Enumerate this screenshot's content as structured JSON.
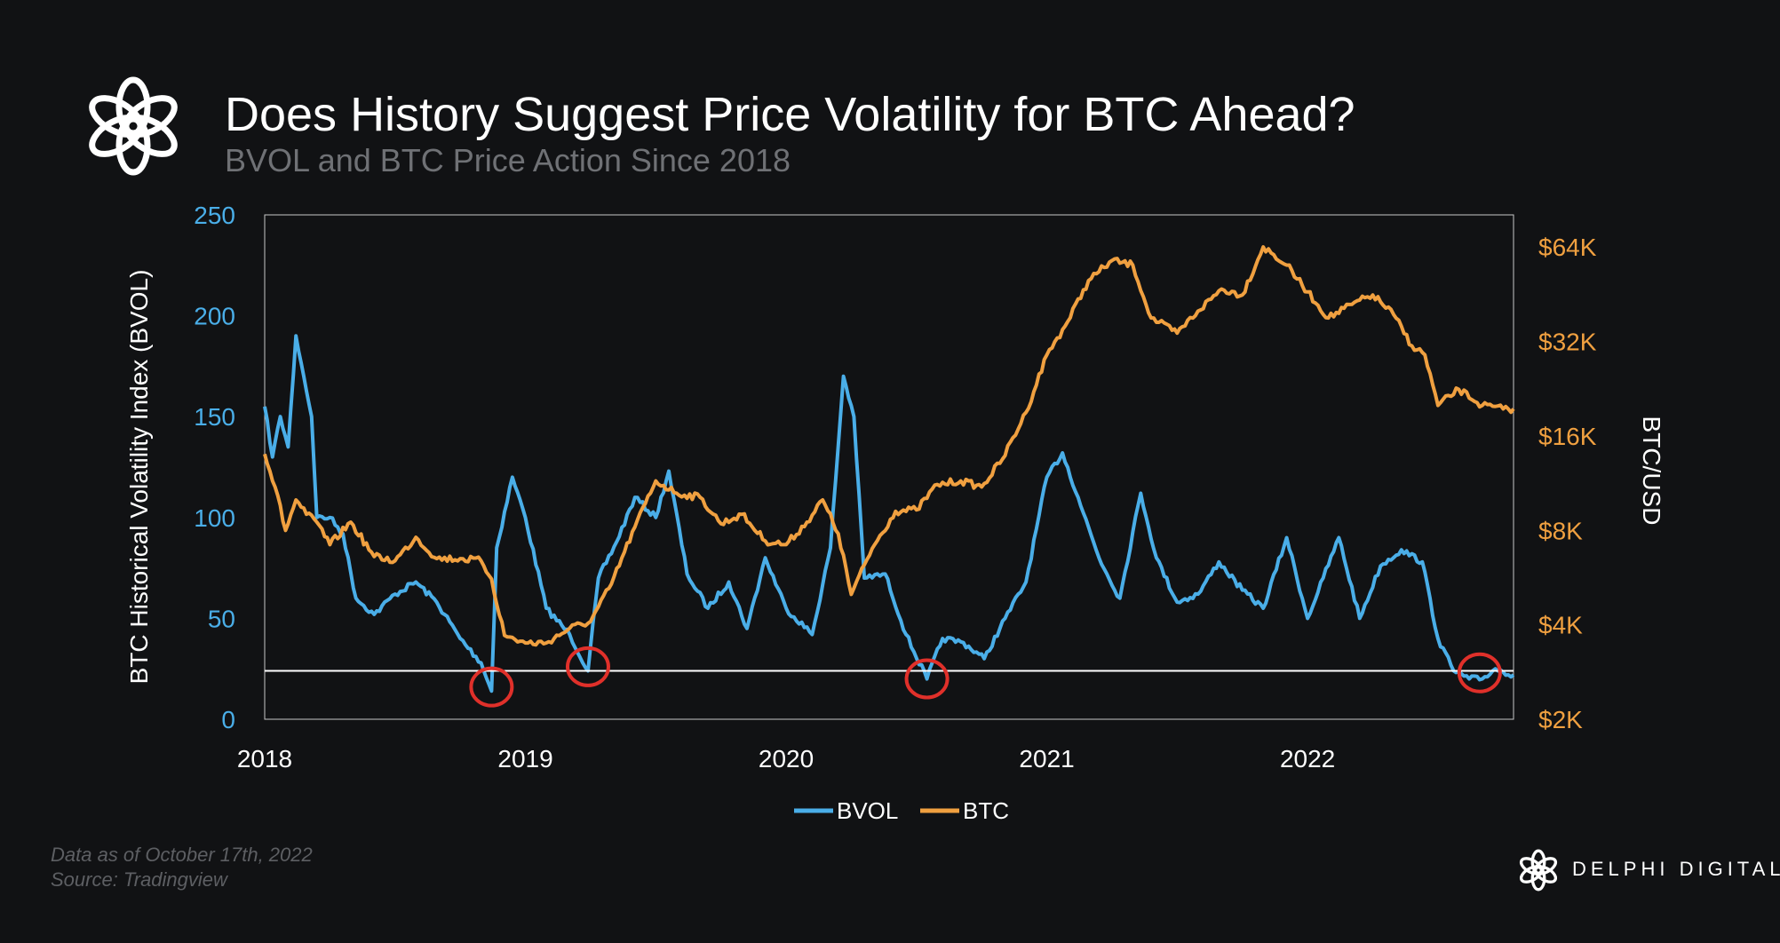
{
  "header": {
    "title": "Does History Suggest Price Volatility for BTC Ahead?",
    "subtitle": "BVOL and BTC Price Action Since 2018",
    "logo_icon": "delphi-knot-logo"
  },
  "footer": {
    "note": "Data as of October 17th, 2022",
    "source": "Source: Tradingview",
    "brand": "DELPHI DIGITAL"
  },
  "colors": {
    "background": "#111214",
    "bvol": "#4aaee8",
    "btc": "#f0a040",
    "threshold": "#ffffff",
    "annotation": "#e0302a"
  },
  "chart_data": {
    "type": "line",
    "title": "Does History Suggest Price Volatility for BTC Ahead?",
    "subtitle": "BVOL and BTC Price Action Since 2018",
    "xlabel": "",
    "ylabel": "BTC Historical Volatility Index (BVOL)",
    "y2label": "BTC/USD",
    "xlim": [
      2018.0,
      2022.79
    ],
    "ylim": [
      0,
      250
    ],
    "y2lim": [
      2000,
      81000
    ],
    "y2scale": "log",
    "grid": false,
    "legend": "bottom-center",
    "x_ticks": [
      "2018",
      "2019",
      "2020",
      "2021",
      "2022"
    ],
    "y_ticks": [
      "0",
      "50",
      "100",
      "150",
      "200",
      "250"
    ],
    "y2_ticks": [
      {
        "value": 2000,
        "label": "$2K"
      },
      {
        "value": 4000,
        "label": "$4K"
      },
      {
        "value": 8000,
        "label": "$8K"
      },
      {
        "value": 16000,
        "label": "$16K"
      },
      {
        "value": 32000,
        "label": "$32K"
      },
      {
        "value": 64000,
        "label": "$64K"
      }
    ],
    "series": [
      {
        "name": "BVOL",
        "axis": "left",
        "color": "#4aaee8",
        "x": [
          2018.0,
          2018.03,
          2018.06,
          2018.09,
          2018.12,
          2018.15,
          2018.18,
          2018.2,
          2018.25,
          2018.3,
          2018.35,
          2018.42,
          2018.5,
          2018.58,
          2018.66,
          2018.75,
          2018.83,
          2018.87,
          2018.89,
          2018.95,
          2019.0,
          2019.08,
          2019.17,
          2019.24,
          2019.28,
          2019.35,
          2019.42,
          2019.5,
          2019.55,
          2019.62,
          2019.7,
          2019.78,
          2019.85,
          2019.92,
          2020.0,
          2020.1,
          2020.17,
          2020.22,
          2020.26,
          2020.3,
          2020.38,
          2020.46,
          2020.54,
          2020.6,
          2020.68,
          2020.76,
          2020.84,
          2020.92,
          2021.0,
          2021.06,
          2021.12,
          2021.2,
          2021.28,
          2021.36,
          2021.42,
          2021.5,
          2021.58,
          2021.66,
          2021.75,
          2021.83,
          2021.92,
          2022.0,
          2022.06,
          2022.12,
          2022.2,
          2022.28,
          2022.36,
          2022.44,
          2022.5,
          2022.56,
          2022.62,
          2022.67,
          2022.72,
          2022.79
        ],
        "y": [
          155,
          130,
          150,
          135,
          190,
          170,
          150,
          100,
          100,
          92,
          60,
          52,
          62,
          68,
          58,
          40,
          28,
          14,
          85,
          120,
          100,
          55,
          42,
          24,
          70,
          88,
          110,
          100,
          123,
          72,
          55,
          68,
          45,
          80,
          55,
          42,
          85,
          170,
          150,
          70,
          72,
          42,
          20,
          40,
          38,
          30,
          50,
          68,
          120,
          132,
          110,
          80,
          60,
          112,
          80,
          58,
          62,
          78,
          64,
          55,
          90,
          50,
          70,
          90,
          50,
          76,
          84,
          78,
          40,
          24,
          20,
          20,
          25,
          22
        ]
      },
      {
        "name": "BTC",
        "axis": "right",
        "color": "#f0a040",
        "x": [
          2018.0,
          2018.04,
          2018.08,
          2018.12,
          2018.16,
          2018.2,
          2018.25,
          2018.33,
          2018.42,
          2018.5,
          2018.58,
          2018.66,
          2018.75,
          2018.83,
          2018.87,
          2018.92,
          2019.0,
          2019.08,
          2019.17,
          2019.25,
          2019.33,
          2019.42,
          2019.5,
          2019.58,
          2019.67,
          2019.75,
          2019.83,
          2019.92,
          2020.0,
          2020.08,
          2020.14,
          2020.2,
          2020.25,
          2020.33,
          2020.42,
          2020.5,
          2020.58,
          2020.67,
          2020.75,
          2020.83,
          2020.92,
          2021.0,
          2021.08,
          2021.16,
          2021.25,
          2021.33,
          2021.4,
          2021.5,
          2021.58,
          2021.67,
          2021.75,
          2021.83,
          2021.92,
          2022.0,
          2022.08,
          2022.17,
          2022.25,
          2022.33,
          2022.4,
          2022.45,
          2022.5,
          2022.58,
          2022.67,
          2022.75,
          2022.79
        ],
        "y": [
          14000,
          11000,
          8000,
          10000,
          9000,
          8500,
          7200,
          8500,
          6600,
          6400,
          7600,
          6500,
          6500,
          6400,
          5600,
          3700,
          3500,
          3500,
          3900,
          4100,
          5400,
          8200,
          11500,
          10500,
          10200,
          8400,
          9000,
          7400,
          7200,
          8500,
          10000,
          7800,
          5000,
          7000,
          9200,
          9300,
          11200,
          11500,
          11000,
          13500,
          19000,
          29000,
          37000,
          50000,
          58000,
          56000,
          38000,
          34000,
          40000,
          47000,
          45000,
          64000,
          56000,
          46000,
          38000,
          42000,
          45000,
          39000,
          31000,
          29000,
          20000,
          22500,
          20000,
          19500,
          19500
        ]
      }
    ],
    "threshold": {
      "y": 24,
      "axis": "left"
    },
    "annotations": [
      {
        "type": "circle",
        "x": 2018.87,
        "y": 16
      },
      {
        "type": "circle",
        "x": 2019.24,
        "y": 26
      },
      {
        "type": "circle",
        "x": 2020.54,
        "y": 20
      },
      {
        "type": "circle",
        "x": 2022.66,
        "y": 23
      }
    ]
  }
}
